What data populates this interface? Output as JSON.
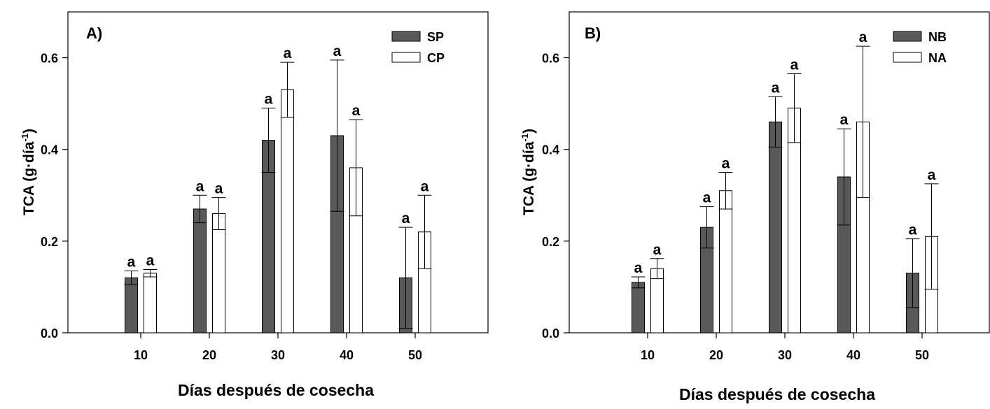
{
  "chart_data": [
    {
      "type": "bar",
      "panel_label": "A)",
      "categories": [
        "10",
        "20",
        "30",
        "40",
        "50"
      ],
      "series": [
        {
          "name": "SP",
          "color": "#595959",
          "values": [
            0.12,
            0.27,
            0.42,
            0.43,
            0.12
          ],
          "errors": [
            0.015,
            0.03,
            0.07,
            0.165,
            0.11
          ]
        },
        {
          "name": "CP",
          "color": "#ffffff",
          "values": [
            0.13,
            0.26,
            0.53,
            0.36,
            0.22
          ],
          "errors": [
            0.008,
            0.035,
            0.06,
            0.105,
            0.08
          ]
        }
      ],
      "letters": [
        [
          "a",
          "a",
          "a",
          "a",
          "a"
        ],
        [
          "a",
          "a",
          "a",
          "a",
          "a"
        ]
      ],
      "xlabel": "Días después de cosecha",
      "ylabel": "TCA (g·día",
      "ylabel_sup": "-1",
      "ylabel_close": ")",
      "ylim": [
        0,
        0.7
      ],
      "yticks": [
        "0.0",
        "0.2",
        "0.4",
        "0.6"
      ],
      "legend_position": "top-right",
      "grid": false
    },
    {
      "type": "bar",
      "panel_label": "B)",
      "categories": [
        "10",
        "20",
        "30",
        "40",
        "50"
      ],
      "series": [
        {
          "name": "NB",
          "color": "#595959",
          "values": [
            0.11,
            0.23,
            0.46,
            0.34,
            0.13
          ],
          "errors": [
            0.012,
            0.045,
            0.055,
            0.105,
            0.075
          ]
        },
        {
          "name": "NA",
          "color": "#ffffff",
          "values": [
            0.14,
            0.31,
            0.49,
            0.46,
            0.21
          ],
          "errors": [
            0.022,
            0.04,
            0.075,
            0.165,
            0.115
          ]
        }
      ],
      "letters": [
        [
          "a",
          "a",
          "a",
          "a",
          "a"
        ],
        [
          "a",
          "a",
          "a",
          "a",
          "a"
        ]
      ],
      "xlabel": "Días después de cosecha",
      "ylabel": "TCA (g·día",
      "ylabel_sup": "-1",
      "ylabel_close": ")",
      "ylim": [
        0,
        0.7
      ],
      "yticks": [
        "0.0",
        "0.2",
        "0.4",
        "0.6"
      ],
      "legend_position": "top-right",
      "grid": false
    }
  ]
}
